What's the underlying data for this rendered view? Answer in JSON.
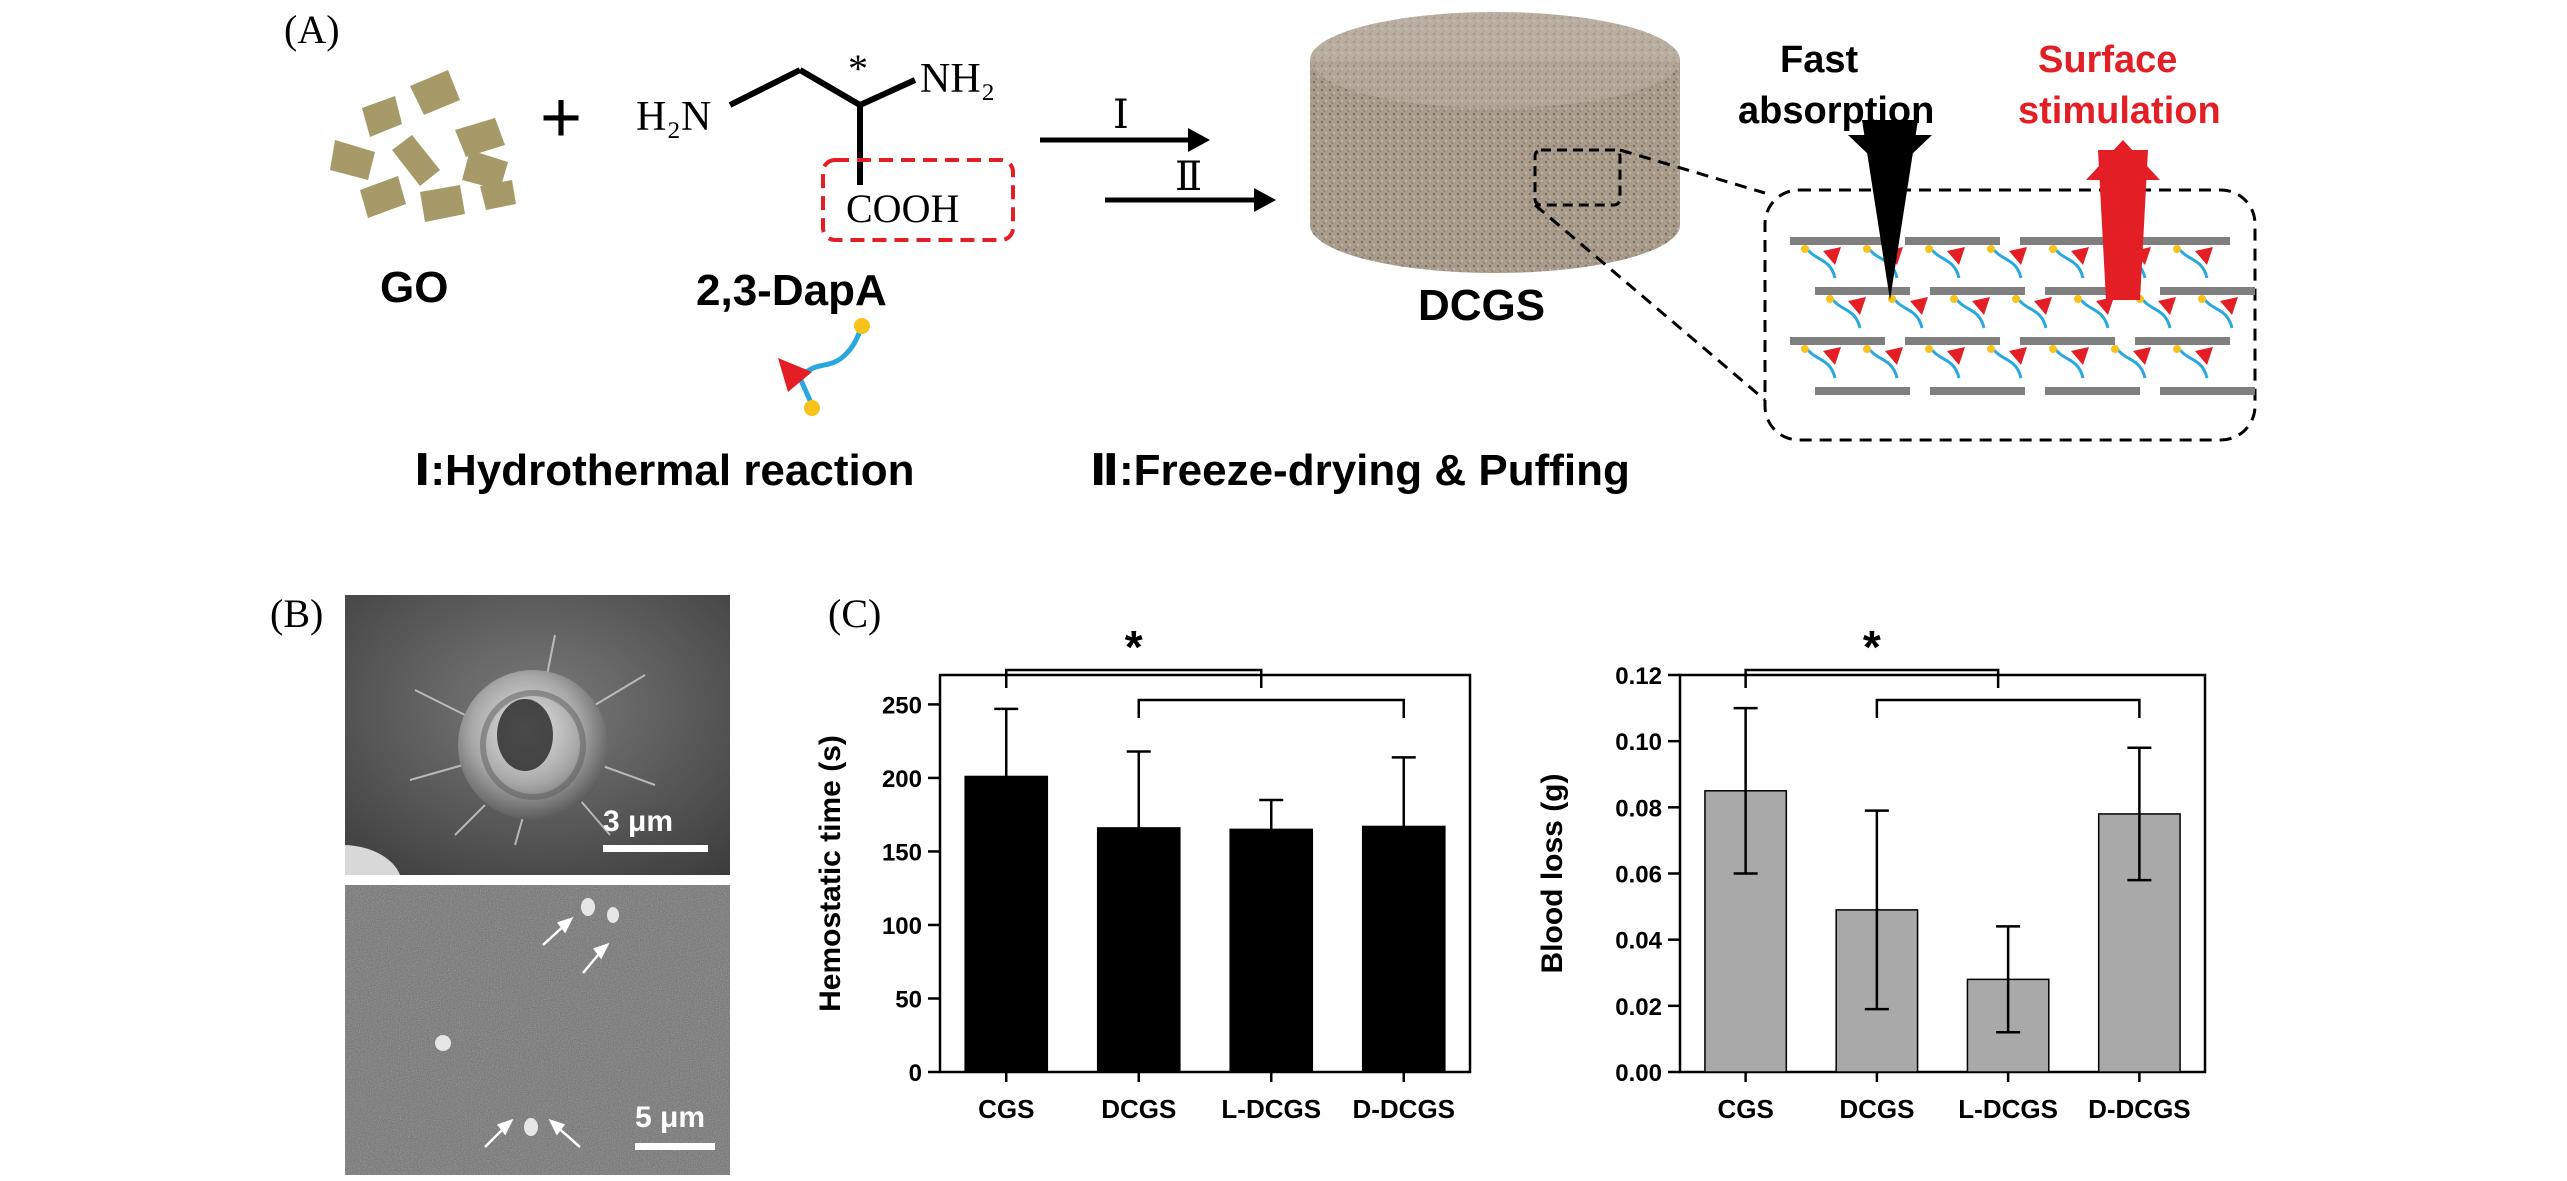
{
  "panels": {
    "a_label": "(A)",
    "b_label": "(B)",
    "c_label": "(C)"
  },
  "schema": {
    "go_label": "GO",
    "plus": "+",
    "dapa_label": "2,3-DapA",
    "h2n": "H₂N",
    "nh2": "NH₂",
    "cooh": "COOH",
    "chiral_star": "*",
    "step_i_arrow": "Ⅰ",
    "step_ii_arrow": "Ⅱ",
    "dcgs_label": "DCGS",
    "step_i_text": "Ⅰ:Hydrothermal reaction",
    "step_ii_text": "Ⅱ:Freeze-drying & Puffing",
    "fast_absorption_line1": "Fast",
    "fast_absorption_line2": "absorption",
    "surface_line1": "Surface",
    "surface_line2": "stimulation",
    "colors": {
      "go": "#a59a68",
      "red_accent": "#e31e24",
      "linker_blue": "#29a8e0",
      "linker_yellow": "#f7c21a",
      "sheet_gray": "#7f7f7f",
      "cylinder": "#a89a8b"
    }
  },
  "sem": {
    "top_scale": "3 μm",
    "bottom_scale": "5 μm"
  },
  "chart_data": [
    {
      "type": "bar",
      "categories": [
        "CGS",
        "DCGS",
        "L-DCGS",
        "D-DCGS"
      ],
      "values": [
        201,
        166,
        165,
        167
      ],
      "errors": [
        46,
        52,
        20,
        47
      ],
      "ylabel": "Hemostatic time (s)",
      "ylim": [
        0,
        270
      ],
      "yticks": [
        "0",
        "50",
        "100",
        "150",
        "200",
        "250"
      ],
      "bar_color": "#000000",
      "significance": "*",
      "grid": false
    },
    {
      "type": "bar",
      "categories": [
        "CGS",
        "DCGS",
        "L-DCGS",
        "D-DCGS"
      ],
      "values": [
        0.085,
        0.049,
        0.028,
        0.078
      ],
      "errors": [
        0.025,
        0.03,
        0.016,
        0.02
      ],
      "ylabel": "Blood loss (g)",
      "ylim": [
        0,
        0.12
      ],
      "yticks": [
        "0.00",
        "0.02",
        "0.04",
        "0.06",
        "0.08",
        "0.10",
        "0.12"
      ],
      "bar_color": "#a9a9a9",
      "significance": "*",
      "grid": false
    }
  ]
}
